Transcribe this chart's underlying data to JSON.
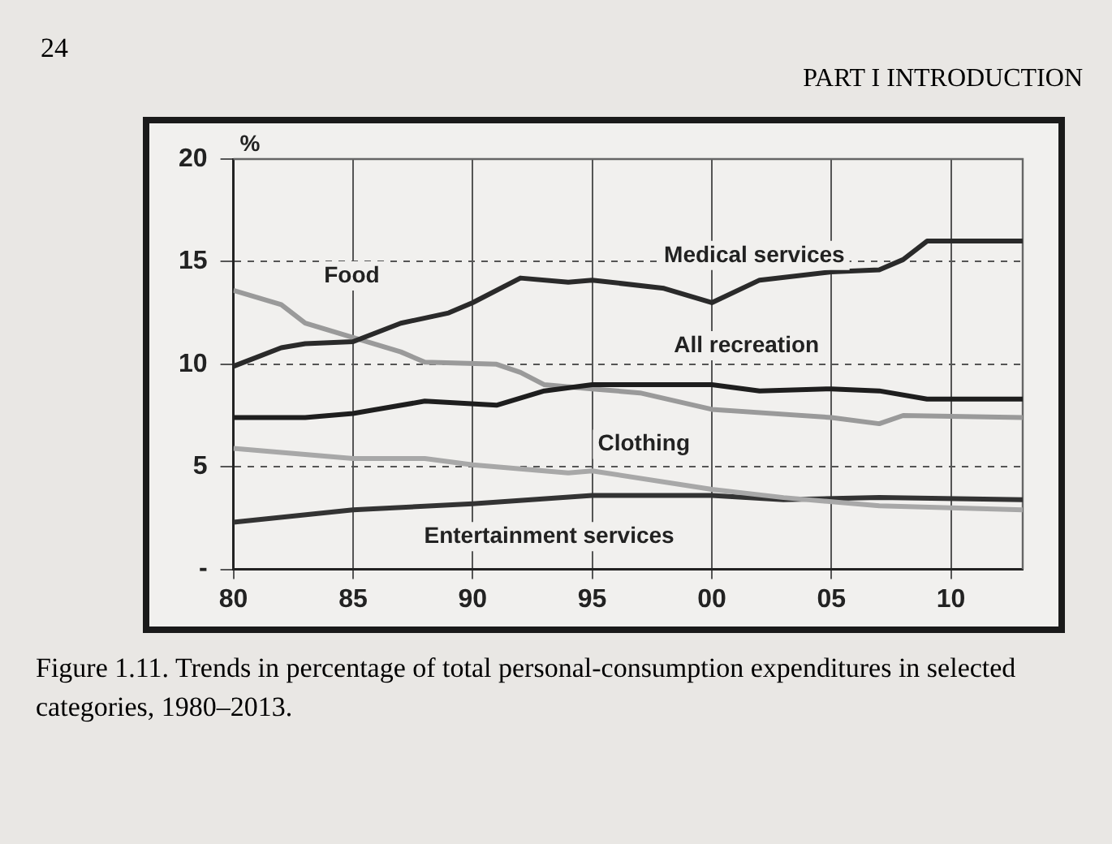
{
  "chart_data": {
    "type": "line",
    "title": "Figure 1.11. Trends in percentage of total personal-consumption expenditures in selected categories, 1980–2013.",
    "ylabel": "%",
    "annotations": [
      "24",
      "PART I INTRODUCTION"
    ],
    "xlim": [
      1980,
      2013
    ],
    "xticks": [
      {
        "value": 1980,
        "label": "80"
      },
      {
        "value": 1985,
        "label": "85"
      },
      {
        "value": 1990,
        "label": "90"
      },
      {
        "value": 1995,
        "label": "95"
      },
      {
        "value": 2000,
        "label": "00"
      },
      {
        "value": 2005,
        "label": "05"
      },
      {
        "value": 2010,
        "label": "10"
      }
    ],
    "ylim": [
      0,
      20
    ],
    "yticks": [
      {
        "value": 0,
        "label": "-"
      },
      5,
      10,
      15,
      20
    ],
    "grid": true,
    "series": [
      {
        "name": "Medical services",
        "color": "#2a2a2a",
        "x": [
          1980,
          1982,
          1983,
          1985,
          1987,
          1989,
          1990,
          1992,
          1994,
          1995,
          1998,
          2000,
          2002,
          2005,
          2007,
          2008,
          2009,
          2013
        ],
        "values": [
          9.9,
          10.8,
          11.0,
          11.1,
          12.0,
          12.5,
          13.0,
          14.2,
          14.0,
          14.1,
          13.7,
          13.0,
          14.1,
          14.5,
          14.6,
          15.1,
          16.0,
          16.0
        ]
      },
      {
        "name": "All recreation",
        "color": "#1e1e1e",
        "x": [
          1980,
          1983,
          1985,
          1988,
          1991,
          1993,
          1995,
          1997,
          2000,
          2002,
          2005,
          2007,
          2009,
          2013
        ],
        "values": [
          7.4,
          7.4,
          7.6,
          8.2,
          8.0,
          8.7,
          9.0,
          9.0,
          9.0,
          8.7,
          8.8,
          8.7,
          8.3,
          8.3
        ]
      },
      {
        "name": "Food",
        "color": "#9a9a9a",
        "x": [
          1980,
          1982,
          1983,
          1985,
          1987,
          1988,
          1991,
          1992,
          1993,
          1995,
          1997,
          2000,
          2005,
          2007,
          2008,
          2013
        ],
        "values": [
          13.6,
          12.9,
          12.0,
          11.3,
          10.6,
          10.1,
          10.0,
          9.6,
          9.0,
          8.8,
          8.6,
          7.8,
          7.4,
          7.1,
          7.5,
          7.4
        ]
      },
      {
        "name": "Clothing",
        "color": "#a8a8a8",
        "x": [
          1980,
          1981,
          1985,
          1988,
          1990,
          1994,
          1995,
          2000,
          2003,
          2007,
          2010,
          2013
        ],
        "values": [
          5.9,
          5.8,
          5.4,
          5.4,
          5.1,
          4.7,
          4.8,
          3.9,
          3.5,
          3.1,
          3.0,
          2.9
        ]
      },
      {
        "name": "Entertainment services",
        "color": "#333333",
        "x": [
          1980,
          1985,
          1990,
          1995,
          2000,
          2003,
          2007,
          2013
        ],
        "values": [
          2.3,
          2.9,
          3.2,
          3.6,
          3.6,
          3.4,
          3.5,
          3.4
        ]
      }
    ]
  }
}
